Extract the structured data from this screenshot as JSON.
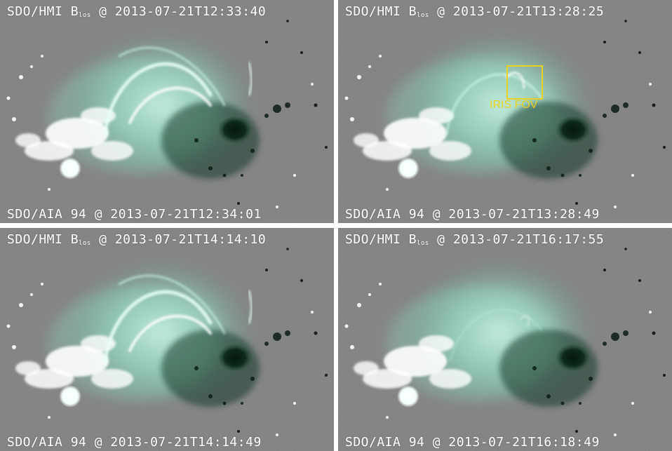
{
  "panels": [
    {
      "hmi_prefix": "SDO/HMI B",
      "hmi_sub": "los",
      "hmi_time": "@ 2013-07-21T12:33:40",
      "aia_label": "SDO/AIA 94 @ 2013-07-21T12:34:01"
    },
    {
      "hmi_prefix": "SDO/HMI B",
      "hmi_sub": "los",
      "hmi_time": "@ 2013-07-21T13:28:25",
      "aia_label": "SDO/AIA 94 @ 2013-07-21T13:28:49",
      "overlay_label": "IRIS FOV"
    },
    {
      "hmi_prefix": "SDO/HMI B",
      "hmi_sub": "los",
      "hmi_time": "@ 2013-07-21T14:14:10",
      "aia_label": "SDO/AIA 94 @ 2013-07-21T14:14:49"
    },
    {
      "hmi_prefix": "SDO/HMI B",
      "hmi_sub": "los",
      "hmi_time": "@ 2013-07-21T16:17:55",
      "aia_label": "SDO/AIA 94 @ 2013-07-21T16:18:49"
    }
  ],
  "colors": {
    "background_gray": "#7a7a7a",
    "emission_green": "#9fe8cf",
    "sunspot_dark": "#0e2a1c",
    "overlay_yellow": "#e6d21f"
  }
}
